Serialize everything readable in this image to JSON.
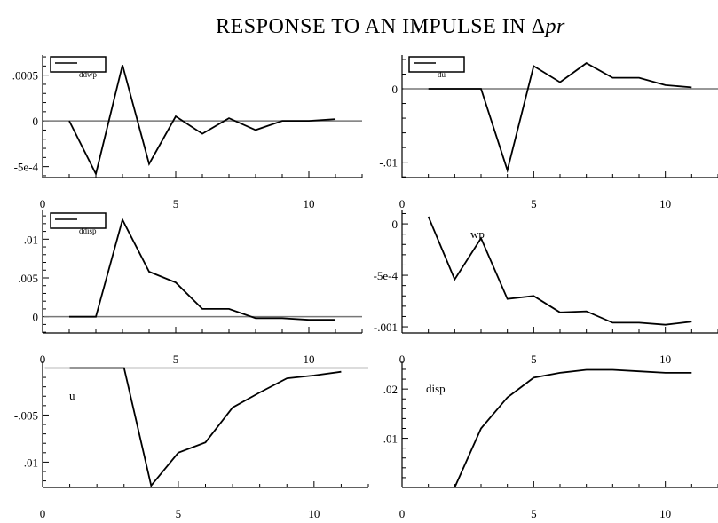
{
  "page": {
    "title_text": "RESPONSE TO AN IMPULSE IN ",
    "title_symbol": "Δ",
    "title_var": "pr"
  },
  "chart_data": [
    {
      "type": "line",
      "legend": "ddwp",
      "label_style": "legend-box",
      "x": [
        1,
        2,
        3,
        4,
        5,
        6,
        7,
        8,
        9,
        10,
        11
      ],
      "y": [
        0,
        -0.00058,
        0.00061,
        -0.00047,
        5e-05,
        -0.00014,
        3e-05,
        -0.0001,
        0,
        0,
        2e-05
      ],
      "ylim": [
        -0.00062,
        0.00072
      ],
      "xlim": [
        0,
        12
      ],
      "xticks": [
        0,
        5,
        10
      ],
      "xtick_labels": [
        "0",
        "5",
        "10"
      ],
      "yticks": [
        0.0005,
        0,
        -0.0005
      ],
      "ytick_labels": [
        ".0005",
        "0",
        "-5e-4"
      ],
      "zero_line": true
    },
    {
      "type": "line",
      "legend": "du",
      "label_style": "legend-box",
      "x": [
        1,
        2,
        3,
        4,
        5,
        6,
        7,
        8,
        9,
        10,
        11
      ],
      "y": [
        0,
        0,
        0,
        -0.0111,
        0.0031,
        0.0009,
        0.0035,
        0.0015,
        0.0015,
        0.0005,
        0.0002
      ],
      "ylim": [
        -0.0121,
        0.0046
      ],
      "xlim": [
        0,
        12
      ],
      "xticks": [
        0,
        5,
        10
      ],
      "xtick_labels": [
        "0",
        "5",
        "10"
      ],
      "yticks": [
        0,
        -0.01
      ],
      "ytick_labels": [
        "0",
        "-.01"
      ],
      "zero_line": true
    },
    {
      "type": "line",
      "legend": "ddisp",
      "label_style": "legend-box",
      "x": [
        1,
        2,
        3,
        4,
        5,
        6,
        7,
        8,
        9,
        10,
        11
      ],
      "y": [
        0,
        0,
        0.0125,
        0.0058,
        0.0044,
        0.001,
        0.001,
        -0.0002,
        -0.0002,
        -0.0004,
        -0.0004
      ],
      "ylim": [
        -0.0021,
        0.0137
      ],
      "xlim": [
        0,
        12
      ],
      "xticks": [
        0,
        5,
        10
      ],
      "xtick_labels": [
        "0",
        "5",
        "10"
      ],
      "yticks": [
        0.01,
        0.005,
        0
      ],
      "ytick_labels": [
        ".01",
        ".005",
        "0"
      ],
      "zero_line": true
    },
    {
      "type": "line",
      "legend": "wp",
      "label_style": "inline",
      "x": [
        1,
        2,
        3,
        4,
        5,
        6,
        7,
        8,
        9,
        10,
        11
      ],
      "y": [
        7e-05,
        -0.00054,
        -0.00014,
        -0.00073,
        -0.0007,
        -0.00086,
        -0.00085,
        -0.00096,
        -0.00096,
        -0.00098,
        -0.00095
      ],
      "ylim": [
        -0.00106,
        0.00013
      ],
      "xlim": [
        0,
        12
      ],
      "xticks": [
        0,
        5,
        10
      ],
      "xtick_labels": [
        "0",
        "5",
        "10"
      ],
      "yticks": [
        0,
        -0.0005,
        -0.001
      ],
      "ytick_labels": [
        "0",
        "-5e-4",
        "-.001"
      ],
      "zero_line": false
    },
    {
      "type": "line",
      "legend": "u",
      "label_style": "inline",
      "x": [
        1,
        2,
        3,
        4,
        5,
        6,
        7,
        8,
        9,
        10,
        11
      ],
      "y": [
        0,
        0,
        0,
        -0.0125,
        -0.009,
        -0.0079,
        -0.0042,
        -0.0026,
        -0.0011,
        -0.0008,
        -0.0004
      ],
      "ylim": [
        -0.0127,
        0.0008
      ],
      "xlim": [
        0,
        12
      ],
      "xticks": [
        0,
        5,
        10
      ],
      "xtick_labels": [
        "0",
        "5",
        "10"
      ],
      "yticks": [
        -0.005,
        -0.01
      ],
      "ytick_labels": [
        "-.005",
        "-.01"
      ],
      "zero_line": true
    },
    {
      "type": "line",
      "legend": "disp",
      "label_style": "inline",
      "x": [
        1,
        2,
        3,
        4,
        5,
        6,
        7,
        8,
        9,
        10,
        11
      ],
      "y": [
        null,
        0,
        0.012,
        0.0183,
        0.0223,
        0.0233,
        0.0239,
        0.0239,
        0.0236,
        0.0233,
        0.0233
      ],
      "ylim": [
        0,
        0.0258
      ],
      "xlim": [
        0,
        12
      ],
      "xticks": [
        0,
        5,
        10
      ],
      "xtick_labels": [
        "0",
        "5",
        "10"
      ],
      "yticks": [
        0.02,
        0.01
      ],
      "ytick_labels": [
        ".02",
        ".01"
      ],
      "zero_line": false
    }
  ]
}
